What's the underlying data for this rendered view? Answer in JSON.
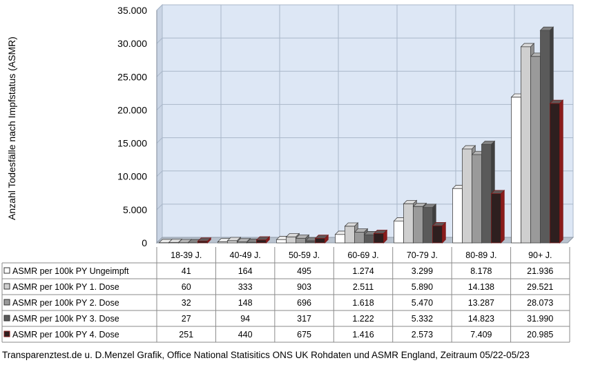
{
  "chart_data": {
    "type": "bar",
    "title": "",
    "ylabel": "Anzahl Todesfälle nach Impfstatus (ASMR)",
    "xlabel": "",
    "ylim": [
      0,
      35000
    ],
    "yticks": [
      "0",
      "5.000",
      "10.000",
      "15.000",
      "20.000",
      "25.000",
      "30.000",
      "35.000"
    ],
    "grid": true,
    "legend": "data-table-left",
    "categories": [
      "18-39 J.",
      "40-49 J.",
      "50-59 J.",
      "60-69 J.",
      "70-79 J.",
      "80-89 J.",
      "90+ J."
    ],
    "series": [
      {
        "name": "ASMR per 100k PY Ungeimpft",
        "color": "#ffffff",
        "values": [
          41,
          164,
          495,
          1274,
          3299,
          8178,
          21936
        ],
        "labels": [
          "41",
          "164",
          "495",
          "1.274",
          "3.299",
          "8.178",
          "21.936"
        ]
      },
      {
        "name": "ASMR per 100k PY 1. Dose",
        "color": "#cfcfcf",
        "values": [
          60,
          333,
          903,
          2511,
          5890,
          14138,
          29521
        ],
        "labels": [
          "60",
          "333",
          "903",
          "2.511",
          "5.890",
          "14.138",
          "29.521"
        ]
      },
      {
        "name": "ASMR per 100k PY 2. Dose",
        "color": "#9a9a9a",
        "values": [
          32,
          148,
          696,
          1618,
          5470,
          13287,
          28073
        ],
        "labels": [
          "32",
          "148",
          "696",
          "1.618",
          "5.470",
          "13.287",
          "28.073"
        ]
      },
      {
        "name": "ASMR per 100k PY 3. Dose",
        "color": "#5a5a5a",
        "values": [
          27,
          94,
          317,
          1222,
          5332,
          14823,
          31990
        ],
        "labels": [
          "27",
          "94",
          "317",
          "1.222",
          "5.332",
          "14.823",
          "31.990"
        ]
      },
      {
        "name": "ASMR per 100k PY 4. Dose",
        "color": "#2e1f1f",
        "values": [
          251,
          440,
          675,
          1416,
          2573,
          7409,
          20985
        ],
        "labels": [
          "251",
          "440",
          "675",
          "1.416",
          "2.573",
          "7.409",
          "20.985"
        ]
      }
    ]
  },
  "footer": "Transparenztest.de u. D.Menzel Grafik, Office National Statisitics ONS UK Rohdaten und ASMR England, Zeitraum 05/22-05/23"
}
